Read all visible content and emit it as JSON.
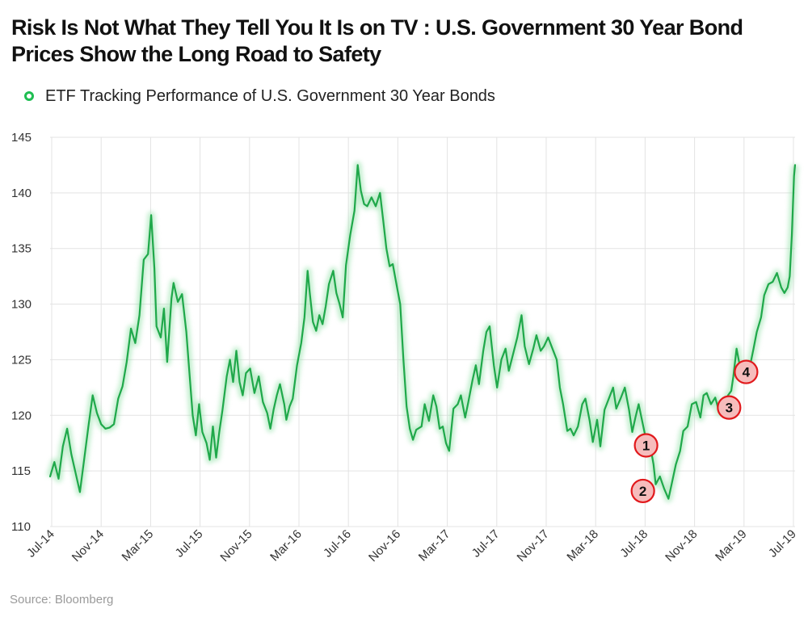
{
  "title": "Risk Is Not What They Tell You It Is on TV : U.S. Government 30 Year Bond Prices Show the Long Road to Safety",
  "source": "Source: Bloomberg",
  "colors": {
    "line": "#1fa84a",
    "marker_fill": "#f6bcbc",
    "marker_stroke": "#e1191c",
    "legend": "#1fbe52",
    "grid": "#e3e3e3"
  },
  "chart_data": {
    "type": "line",
    "title": "Risk Is Not What They Tell You It Is on TV : U.S. Government 30 Year Bond Prices Show the Long Road to Safety",
    "xlabel": "",
    "ylabel": "",
    "ylim": [
      110,
      145
    ],
    "yticks": [
      110,
      115,
      120,
      125,
      130,
      135,
      140,
      145
    ],
    "xticks": [
      "Jul-14",
      "Nov-14",
      "Mar-15",
      "Jul-15",
      "Nov-15",
      "Mar-16",
      "Jul-16",
      "Nov-16",
      "Mar-17",
      "Jul-17",
      "Nov-17",
      "Mar-18",
      "Jul-18",
      "Nov-18",
      "Mar-19",
      "Jul-19"
    ],
    "grid": true,
    "legend_position": "top-left",
    "series": [
      {
        "name": "ETF Tracking Performance of U.S. Government 30 Year Bonds",
        "points": [
          [
            0.0,
            114.5
          ],
          [
            0.2,
            115.8
          ],
          [
            0.4,
            114.3
          ],
          [
            0.6,
            117.2
          ],
          [
            0.8,
            118.8
          ],
          [
            1.0,
            116.5
          ],
          [
            1.2,
            114.8
          ],
          [
            1.4,
            113.1
          ],
          [
            1.6,
            116.0
          ],
          [
            1.8,
            119.0
          ],
          [
            2.0,
            121.8
          ],
          [
            2.2,
            120.2
          ],
          [
            2.4,
            119.2
          ],
          [
            2.6,
            118.8
          ],
          [
            2.8,
            118.9
          ],
          [
            3.0,
            119.2
          ],
          [
            3.2,
            121.5
          ],
          [
            3.4,
            122.6
          ],
          [
            3.6,
            124.8
          ],
          [
            3.8,
            127.8
          ],
          [
            4.0,
            126.5
          ],
          [
            4.2,
            129.0
          ],
          [
            4.4,
            134.0
          ],
          [
            4.6,
            134.5
          ],
          [
            4.75,
            138.0
          ],
          [
            4.9,
            133.2
          ],
          [
            5.0,
            128.0
          ],
          [
            5.2,
            127.0
          ],
          [
            5.35,
            129.6
          ],
          [
            5.5,
            124.8
          ],
          [
            5.7,
            130.5
          ],
          [
            5.8,
            131.9
          ],
          [
            6.0,
            130.2
          ],
          [
            6.2,
            130.9
          ],
          [
            6.4,
            127.5
          ],
          [
            6.5,
            125.0
          ],
          [
            6.7,
            120.0
          ],
          [
            6.85,
            118.2
          ],
          [
            7.0,
            121.0
          ],
          [
            7.15,
            118.5
          ],
          [
            7.35,
            117.5
          ],
          [
            7.5,
            116.0
          ],
          [
            7.65,
            119.0
          ],
          [
            7.8,
            116.2
          ],
          [
            7.95,
            118.5
          ],
          [
            8.1,
            120.5
          ],
          [
            8.3,
            123.5
          ],
          [
            8.45,
            125.0
          ],
          [
            8.6,
            123.0
          ],
          [
            8.75,
            125.8
          ],
          [
            8.9,
            123.0
          ],
          [
            9.05,
            121.8
          ],
          [
            9.2,
            123.8
          ],
          [
            9.4,
            124.2
          ],
          [
            9.6,
            122.0
          ],
          [
            9.8,
            123.5
          ],
          [
            10.0,
            121.2
          ],
          [
            10.2,
            120.2
          ],
          [
            10.35,
            118.8
          ],
          [
            10.5,
            120.5
          ],
          [
            10.65,
            121.8
          ],
          [
            10.8,
            122.8
          ],
          [
            11.0,
            121.0
          ],
          [
            11.1,
            119.6
          ],
          [
            11.25,
            120.8
          ],
          [
            11.4,
            121.5
          ],
          [
            11.6,
            124.5
          ],
          [
            11.8,
            126.5
          ],
          [
            11.95,
            128.8
          ],
          [
            12.1,
            133.0
          ],
          [
            12.2,
            131.0
          ],
          [
            12.35,
            128.4
          ],
          [
            12.5,
            127.6
          ],
          [
            12.65,
            129.0
          ],
          [
            12.8,
            128.2
          ],
          [
            12.95,
            129.8
          ],
          [
            13.1,
            131.8
          ],
          [
            13.3,
            133.0
          ],
          [
            13.45,
            131.0
          ],
          [
            13.6,
            130.0
          ],
          [
            13.75,
            128.8
          ],
          [
            13.9,
            133.5
          ],
          [
            14.1,
            136.2
          ],
          [
            14.3,
            138.4
          ],
          [
            14.45,
            142.5
          ],
          [
            14.6,
            140.2
          ],
          [
            14.75,
            139.0
          ],
          [
            14.9,
            138.8
          ],
          [
            15.1,
            139.6
          ],
          [
            15.3,
            138.8
          ],
          [
            15.5,
            140.0
          ],
          [
            15.65,
            137.5
          ],
          [
            15.8,
            135.0
          ],
          [
            15.95,
            133.4
          ],
          [
            16.1,
            133.6
          ],
          [
            16.3,
            131.5
          ],
          [
            16.45,
            130.0
          ],
          [
            16.6,
            125.0
          ],
          [
            16.75,
            120.8
          ],
          [
            16.9,
            118.8
          ],
          [
            17.05,
            117.8
          ],
          [
            17.2,
            118.7
          ],
          [
            17.45,
            119.0
          ],
          [
            17.6,
            121.0
          ],
          [
            17.8,
            119.5
          ],
          [
            18.0,
            121.8
          ],
          [
            18.15,
            120.8
          ],
          [
            18.3,
            118.8
          ],
          [
            18.45,
            119.0
          ],
          [
            18.6,
            117.5
          ],
          [
            18.75,
            116.8
          ],
          [
            18.95,
            120.6
          ],
          [
            19.15,
            121.0
          ],
          [
            19.3,
            121.8
          ],
          [
            19.5,
            119.8
          ],
          [
            19.65,
            121.2
          ],
          [
            19.85,
            123.2
          ],
          [
            20.0,
            124.5
          ],
          [
            20.15,
            122.8
          ],
          [
            20.35,
            125.8
          ],
          [
            20.5,
            127.5
          ],
          [
            20.65,
            128.0
          ],
          [
            20.85,
            124.5
          ],
          [
            21.0,
            122.5
          ],
          [
            21.2,
            125.0
          ],
          [
            21.4,
            126.0
          ],
          [
            21.55,
            124.0
          ],
          [
            21.75,
            125.5
          ],
          [
            21.95,
            127.0
          ],
          [
            22.15,
            129.0
          ],
          [
            22.3,
            126.2
          ],
          [
            22.5,
            124.6
          ],
          [
            22.7,
            126.0
          ],
          [
            22.85,
            127.2
          ],
          [
            23.05,
            125.8
          ],
          [
            23.2,
            126.2
          ],
          [
            23.4,
            127.0
          ],
          [
            23.6,
            126.0
          ],
          [
            23.8,
            125.0
          ],
          [
            23.95,
            122.5
          ],
          [
            24.1,
            121.0
          ],
          [
            24.3,
            118.6
          ],
          [
            24.45,
            118.8
          ],
          [
            24.6,
            118.2
          ],
          [
            24.8,
            119.0
          ],
          [
            25.0,
            121.0
          ],
          [
            25.15,
            121.5
          ],
          [
            25.35,
            119.5
          ],
          [
            25.5,
            117.6
          ],
          [
            25.7,
            119.6
          ],
          [
            25.85,
            117.2
          ],
          [
            26.05,
            120.5
          ],
          [
            26.25,
            121.5
          ],
          [
            26.45,
            122.5
          ],
          [
            26.6,
            120.6
          ],
          [
            26.8,
            121.5
          ],
          [
            27.0,
            122.5
          ],
          [
            27.2,
            120.5
          ],
          [
            27.35,
            118.5
          ],
          [
            27.5,
            119.8
          ],
          [
            27.65,
            121.0
          ],
          [
            27.85,
            119.2
          ],
          [
            28.0,
            117.8
          ],
          [
            28.2,
            117.2
          ],
          [
            28.35,
            115.6
          ],
          [
            28.45,
            113.8
          ],
          [
            28.65,
            114.5
          ],
          [
            28.85,
            113.4
          ],
          [
            29.05,
            112.5
          ],
          [
            29.2,
            113.8
          ],
          [
            29.4,
            115.6
          ],
          [
            29.6,
            116.8
          ],
          [
            29.75,
            118.6
          ],
          [
            29.95,
            119.0
          ],
          [
            30.15,
            121.0
          ],
          [
            30.35,
            121.2
          ],
          [
            30.55,
            119.8
          ],
          [
            30.7,
            121.8
          ],
          [
            30.85,
            122.0
          ],
          [
            31.05,
            121.0
          ],
          [
            31.25,
            121.6
          ],
          [
            31.45,
            120.2
          ],
          [
            31.65,
            120.5
          ],
          [
            31.85,
            121.8
          ],
          [
            32.0,
            122.2
          ],
          [
            32.1,
            123.5
          ],
          [
            32.25,
            126.0
          ],
          [
            32.4,
            124.5
          ],
          [
            32.55,
            123.5
          ],
          [
            32.7,
            124.0
          ],
          [
            32.9,
            124.6
          ],
          [
            33.05,
            126.0
          ],
          [
            33.2,
            127.5
          ],
          [
            33.4,
            128.8
          ],
          [
            33.55,
            130.8
          ],
          [
            33.75,
            131.8
          ],
          [
            33.95,
            132.0
          ],
          [
            34.15,
            132.8
          ],
          [
            34.35,
            131.5
          ],
          [
            34.5,
            131.0
          ],
          [
            34.65,
            131.5
          ],
          [
            34.75,
            132.5
          ],
          [
            34.85,
            136.2
          ],
          [
            34.95,
            141.5
          ],
          [
            35.0,
            142.5
          ]
        ]
      }
    ],
    "annotations": [
      {
        "label": "1",
        "x": 28.0,
        "y": 117.3
      },
      {
        "label": "2",
        "x": 27.85,
        "y": 113.2
      },
      {
        "label": "3",
        "x": 31.9,
        "y": 120.7
      },
      {
        "label": "4",
        "x": 32.7,
        "y": 123.9
      }
    ]
  }
}
